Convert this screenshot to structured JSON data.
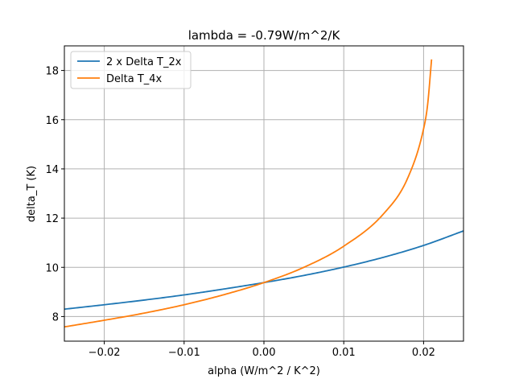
{
  "chart_data": {
    "type": "line",
    "title": "lambda = -0.79W/m^2/K",
    "xlabel": "alpha (W/m^2 / K^2)",
    "ylabel": "delta_T (K)",
    "xlim": [
      -0.025,
      0.025
    ],
    "ylim": [
      7.0,
      19.0
    ],
    "xticks": [
      -0.02,
      -0.01,
      0.0,
      0.01,
      0.02
    ],
    "xtick_labels": [
      "−0.02",
      "−0.01",
      "0.00",
      "0.01",
      "0.02"
    ],
    "yticks": [
      8,
      10,
      12,
      14,
      16,
      18
    ],
    "ytick_labels": [
      "8",
      "10",
      "12",
      "14",
      "16",
      "18"
    ],
    "grid": true,
    "legend_position": "top-left",
    "series": [
      {
        "name": "2 x Delta T_2x",
        "color": "#1f77b4",
        "x": [
          -0.025,
          -0.02,
          -0.015,
          -0.01,
          -0.005,
          0.0,
          0.005,
          0.01,
          0.015,
          0.02,
          0.025
        ],
        "y": [
          8.3,
          8.48,
          8.67,
          8.88,
          9.12,
          9.38,
          9.67,
          10.01,
          10.41,
          10.89,
          11.48
        ]
      },
      {
        "name": "Delta T_4x",
        "color": "#ff7f0e",
        "x": [
          -0.025,
          -0.02,
          -0.015,
          -0.01,
          -0.005,
          0.0,
          0.005,
          0.01,
          0.015,
          0.018,
          0.02,
          0.0205,
          0.021
        ],
        "y": [
          7.58,
          7.85,
          8.14,
          8.48,
          8.89,
          9.38,
          10.0,
          10.86,
          12.18,
          13.62,
          15.63,
          16.6,
          18.45
        ]
      }
    ]
  }
}
